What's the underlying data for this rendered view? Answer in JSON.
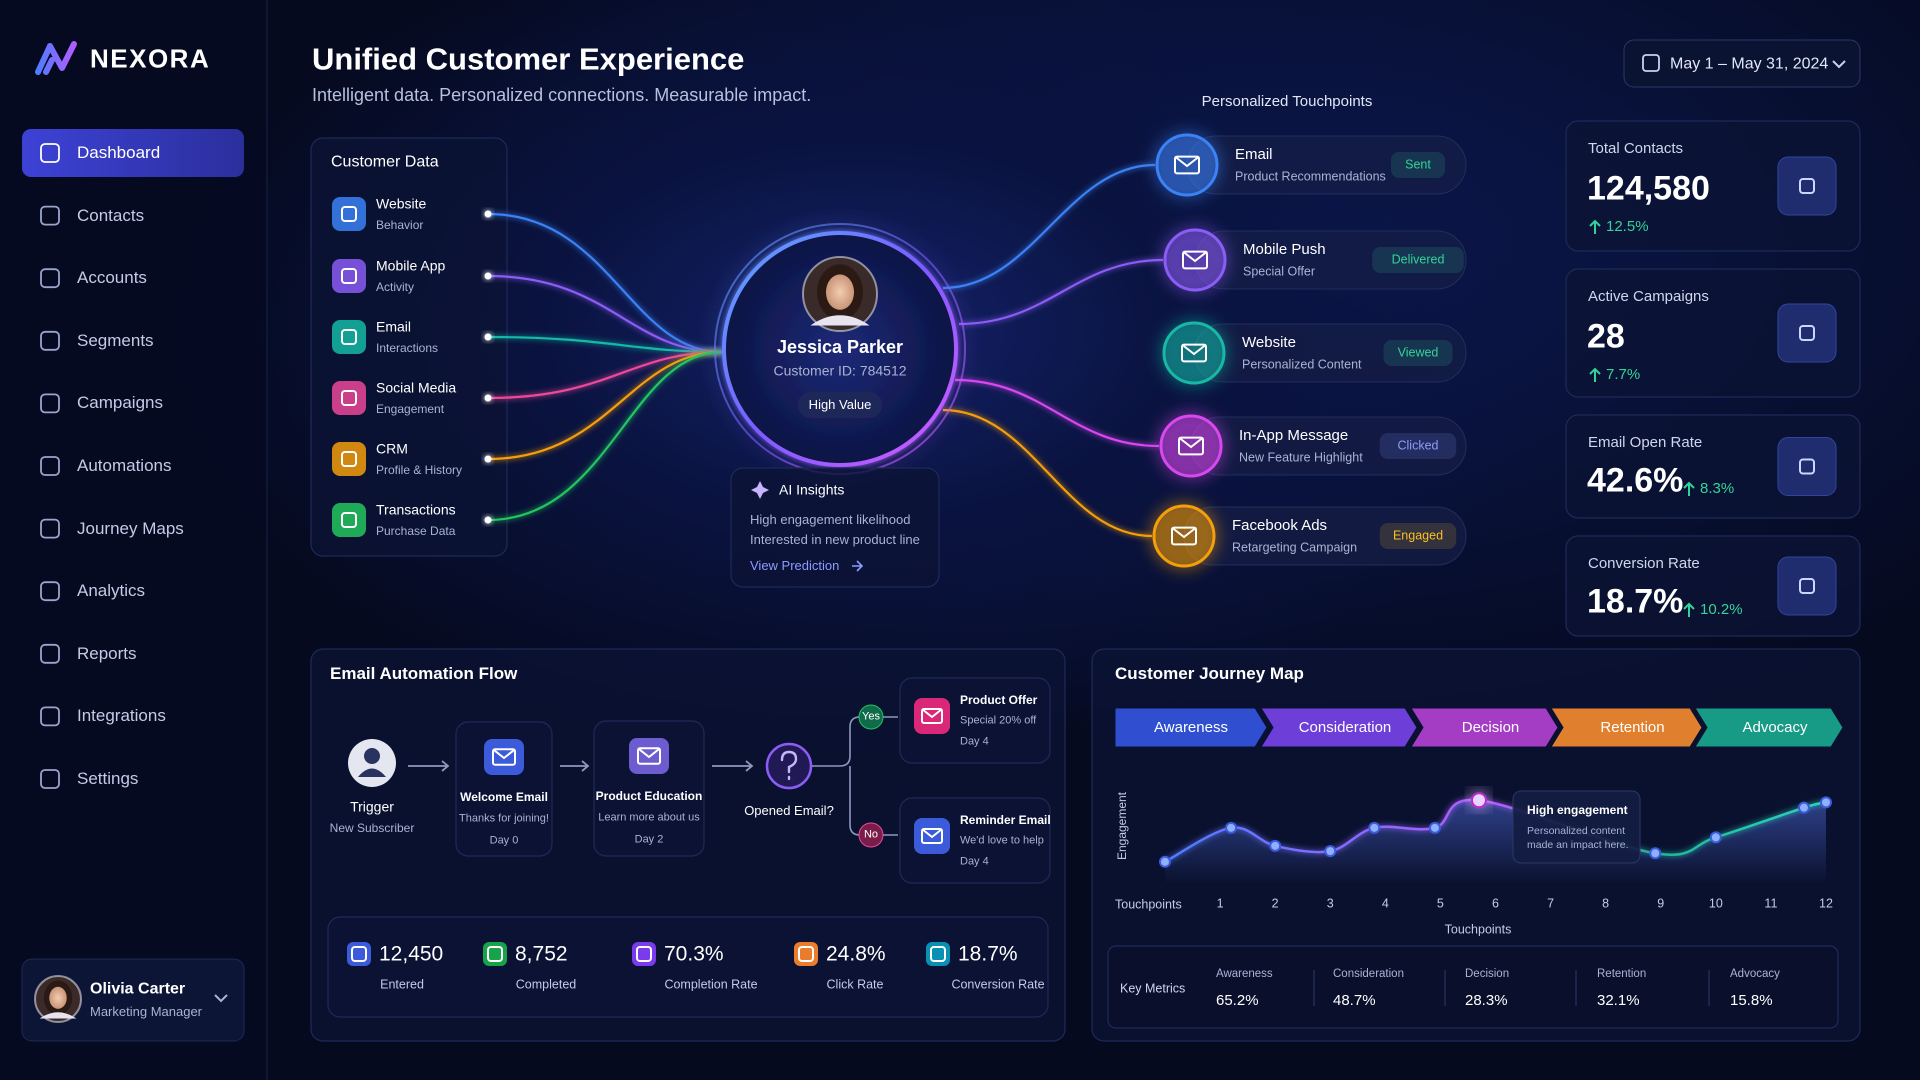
{
  "sidebar": {
    "brand": "NEXORA",
    "nav": [
      "Dashboard",
      "Contacts",
      "Accounts",
      "Segments",
      "Campaigns",
      "Automations",
      "Journey Maps",
      "Analytics",
      "Reports",
      "Integrations",
      "Settings"
    ],
    "active": 0,
    "user": {
      "name": "Olivia Carter",
      "role": "Marketing Manager"
    }
  },
  "header": {
    "title": "Unified Customer Experience",
    "subtitle": "Intelligent data. Personalized connections. Measurable impact.",
    "date_range": "May 1 – May 31, 2024"
  },
  "customer_data": {
    "title": "Customer Data",
    "sources": [
      {
        "label": "Website",
        "sub": "Behavior",
        "color": "#3b82f6"
      },
      {
        "label": "Mobile App",
        "sub": "Activity",
        "color": "#8b5cf6"
      },
      {
        "label": "Email",
        "sub": "Interactions",
        "color": "#14b8a6"
      },
      {
        "label": "Social Media",
        "sub": "Engagement",
        "color": "#ec4899"
      },
      {
        "label": "CRM",
        "sub": "Profile & History",
        "color": "#f59e0b"
      },
      {
        "label": "Transactions",
        "sub": "Purchase Data",
        "color": "#22c55e"
      }
    ]
  },
  "profile": {
    "name": "Jessica Parker",
    "customer_id": "Customer ID: 784512",
    "badge": "High Value"
  },
  "ai_insights": {
    "title": "AI Insights",
    "lines": [
      "High engagement likelihood",
      "Interested in new product line"
    ],
    "link": "View Prediction"
  },
  "touchpoints": {
    "title": "Personalized Touchpoints",
    "items": [
      {
        "channel": "Email",
        "detail": "Product Recommendations",
        "status": "Sent",
        "color": "#3b82f6",
        "status_color": "#34d399"
      },
      {
        "channel": "Mobile Push",
        "detail": "Special Offer",
        "status": "Delivered",
        "color": "#8b5cf6",
        "status_color": "#34d399"
      },
      {
        "channel": "Website",
        "detail": "Personalized Content",
        "status": "Viewed",
        "color": "#14b8a6",
        "status_color": "#34d399"
      },
      {
        "channel": "In-App Message",
        "detail": "New Feature Highlight",
        "status": "Clicked",
        "color": "#d946ef",
        "status_color": "#8b9cff"
      },
      {
        "channel": "Facebook Ads",
        "detail": "Retargeting Campaign",
        "status": "Engaged",
        "color": "#f59e0b",
        "status_color": "#fbbf24"
      }
    ]
  },
  "kpis": [
    {
      "label": "Total Contacts",
      "value": "124,580",
      "change": "12.5%"
    },
    {
      "label": "Active Campaigns",
      "value": "28",
      "change": "7.7%"
    },
    {
      "label": "Email Open Rate",
      "value": "42.6%",
      "change": "8.3%"
    },
    {
      "label": "Conversion Rate",
      "value": "18.7%",
      "change": "10.2%"
    }
  ],
  "email_flow": {
    "title": "Email Automation Flow",
    "trigger": {
      "label": "Trigger",
      "sub": "New Subscriber"
    },
    "steps": [
      {
        "title": "Welcome Email",
        "desc": "Thanks for joining!",
        "day": "Day 0"
      },
      {
        "title": "Product Education",
        "desc": "Learn more about us",
        "day": "Day 2"
      }
    ],
    "decision": "Opened Email?",
    "yes": "Yes",
    "no": "No",
    "yes_step": {
      "title": "Product Offer",
      "desc": "Special 20% off",
      "day": "Day 4"
    },
    "no_step": {
      "title": "Reminder Email",
      "desc": "We'd love to help",
      "day": "Day 4"
    },
    "stats": [
      {
        "value": "12,450",
        "label": "Entered",
        "color": "#3b5bdb"
      },
      {
        "value": "8,752",
        "label": "Completed",
        "color": "#16a34a"
      },
      {
        "value": "70.3%",
        "label": "Completion Rate",
        "color": "#7c3aed"
      },
      {
        "value": "24.8%",
        "label": "Click Rate",
        "color": "#ea7c2c"
      },
      {
        "value": "18.7%",
        "label": "Conversion Rate",
        "color": "#0891b2"
      }
    ]
  },
  "journey": {
    "title": "Customer Journey Map",
    "stages": [
      {
        "name": "Awareness",
        "color": "#2f4fd0"
      },
      {
        "name": "Consideration",
        "color": "#6d3fd8"
      },
      {
        "name": "Decision",
        "color": "#a53cc4"
      },
      {
        "name": "Retention",
        "color": "#e0802e"
      },
      {
        "name": "Advocacy",
        "color": "#179a86"
      }
    ],
    "chart": {
      "type": "line",
      "y_label": "Engagement",
      "tick_heading": "Touchpoints",
      "x_label": "Touchpoints",
      "x": [
        0,
        1.2,
        2,
        3,
        3.8,
        4.9,
        5.7,
        8.9,
        10,
        11.6,
        12
      ],
      "values": [
        21,
        53,
        36,
        31,
        53,
        53,
        79,
        29,
        44,
        72,
        77
      ],
      "xlim": [
        0,
        12
      ],
      "ylim": [
        0,
        100
      ],
      "xticks": [
        1,
        2,
        3,
        4,
        5,
        6,
        7,
        8,
        9,
        10,
        11,
        12
      ],
      "color": "#5b7cfa"
    },
    "callout": {
      "title": "High engagement",
      "text": "Personalized content made an impact here."
    },
    "key_metrics_label": "Key Metrics",
    "metrics": [
      {
        "stage": "Awareness",
        "value": "65.2%"
      },
      {
        "stage": "Consideration",
        "value": "48.7%"
      },
      {
        "stage": "Decision",
        "value": "28.3%"
      },
      {
        "stage": "Retention",
        "value": "32.1%"
      },
      {
        "stage": "Advocacy",
        "value": "15.8%"
      }
    ]
  }
}
